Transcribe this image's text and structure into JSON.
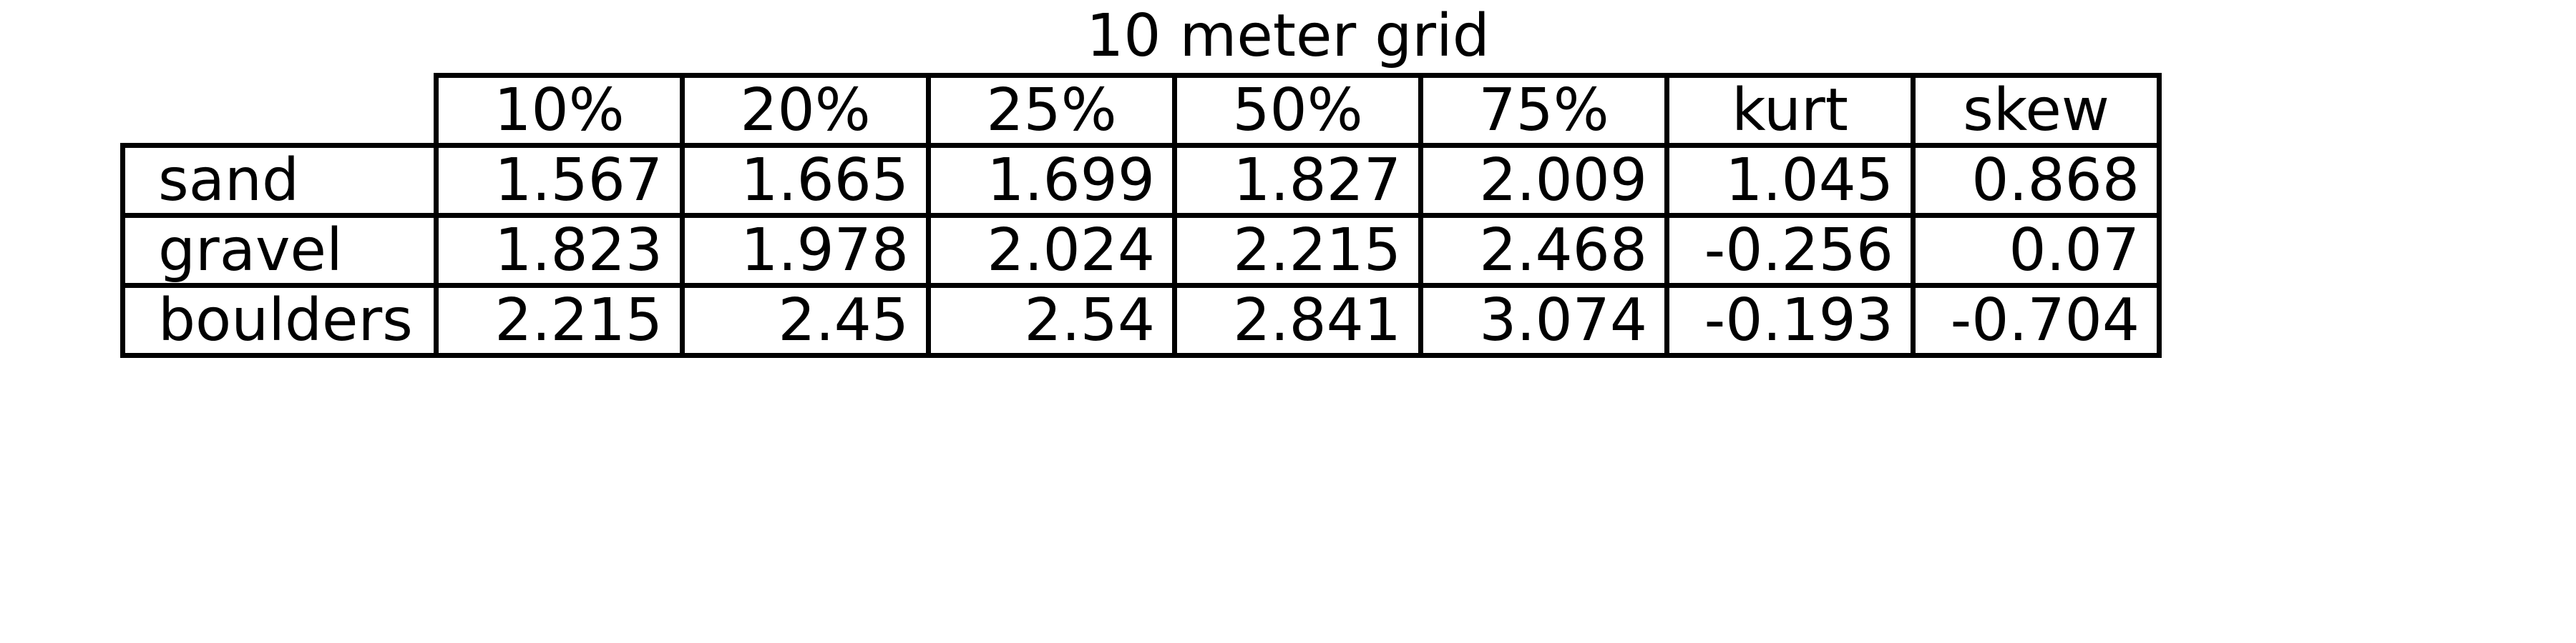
{
  "chart_data": {
    "type": "table",
    "title": "10 meter grid",
    "columns": [
      "10%",
      "20%",
      "25%",
      "50%",
      "75%",
      "kurt",
      "skew"
    ],
    "rows": [
      {
        "label": "sand",
        "values": [
          "1.567",
          "1.665",
          "1.699",
          "1.827",
          "2.009",
          "1.045",
          "0.868"
        ]
      },
      {
        "label": "gravel",
        "values": [
          "1.823",
          "1.978",
          "2.024",
          "2.215",
          "2.468",
          "-0.256",
          "0.07"
        ]
      },
      {
        "label": "boulders",
        "values": [
          "2.215",
          "2.45",
          "2.54",
          "2.841",
          "3.074",
          "-0.193",
          "-0.704"
        ]
      }
    ]
  }
}
